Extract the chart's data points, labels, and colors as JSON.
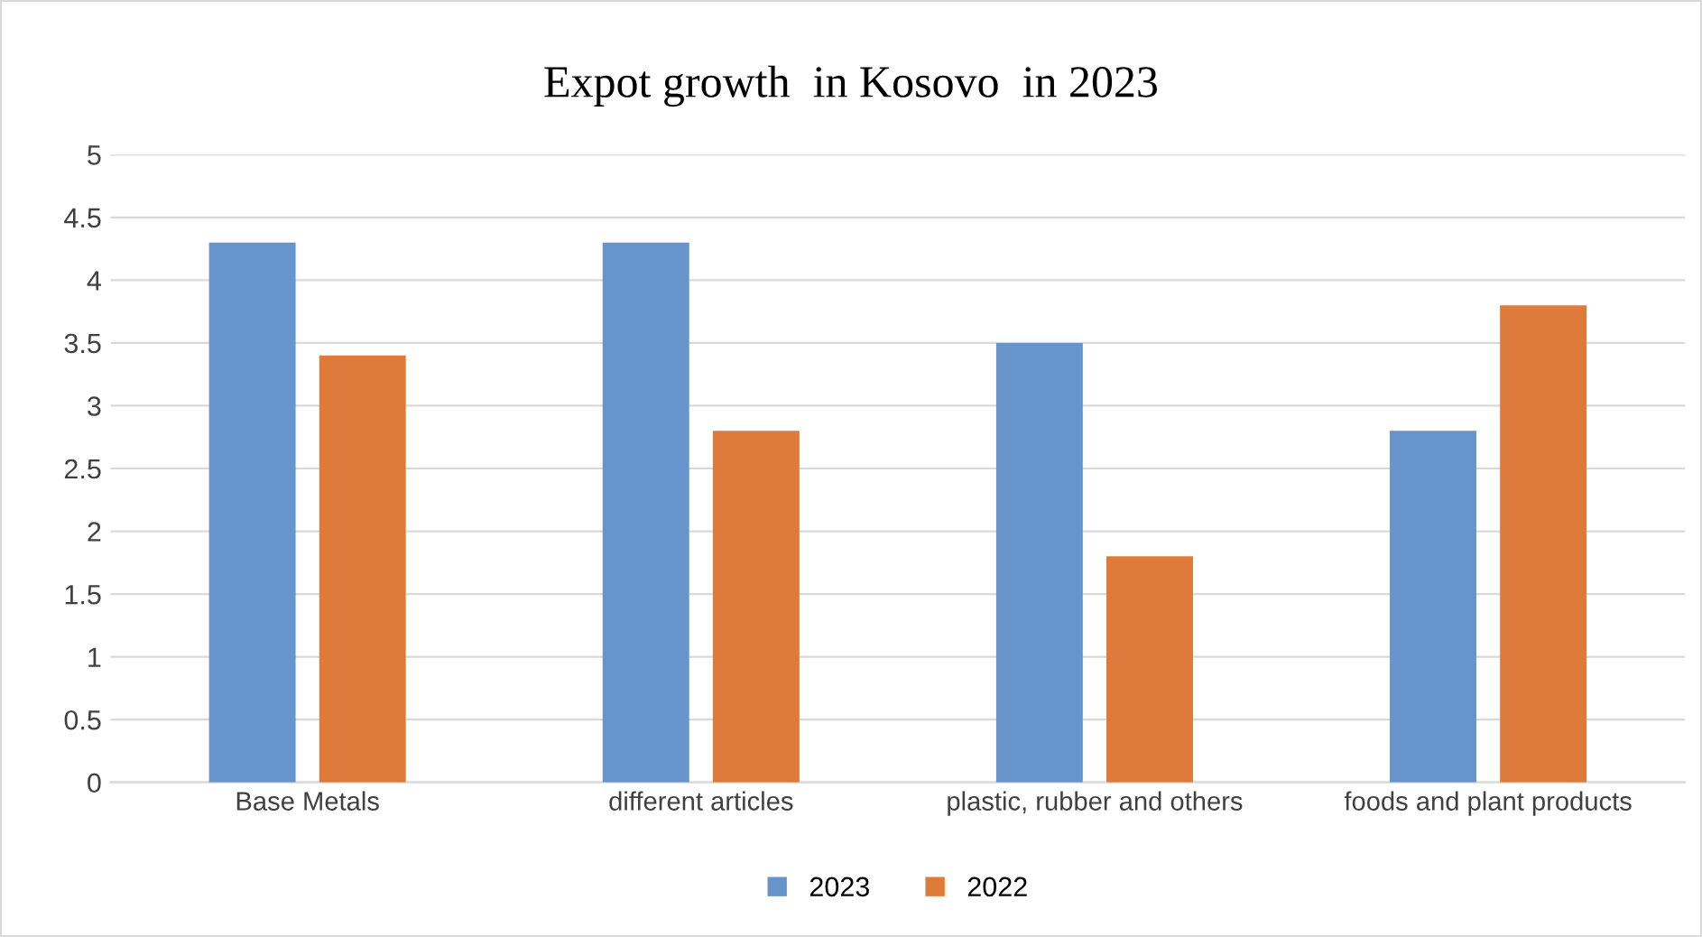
{
  "chart_data": {
    "type": "bar",
    "title": "Expot growth  in Kosovo  in 2023",
    "categories": [
      "Base Metals",
      "different articles",
      "plastic, rubber and others",
      "foods and plant products"
    ],
    "series": [
      {
        "name": "2023",
        "color": "#6694cb",
        "values": [
          4.3,
          4.3,
          3.5,
          2.8
        ]
      },
      {
        "name": "2022",
        "color": "#df7b3a",
        "values": [
          3.4,
          2.8,
          1.8,
          3.8
        ]
      }
    ],
    "ylim": [
      0,
      5
    ],
    "yticks": [
      0,
      0.5,
      1,
      1.5,
      2,
      2.5,
      3,
      3.5,
      4,
      4.5,
      5
    ],
    "grid": "y",
    "legend": "bottom"
  }
}
